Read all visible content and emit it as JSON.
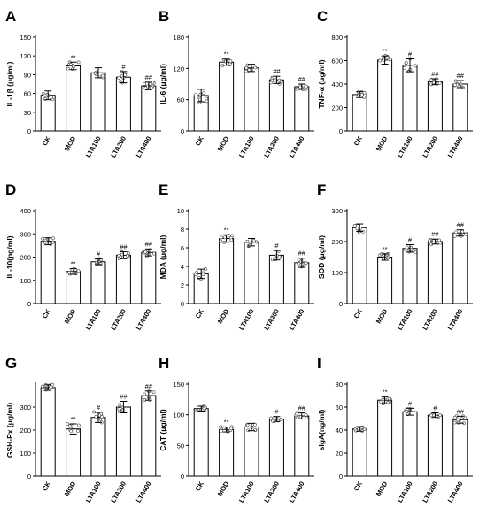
{
  "chart_data": [
    {
      "panel": "A",
      "type": "bar",
      "ylabel": "IL-1β (μg/ml)",
      "categories": [
        "CK",
        "MOD",
        "LTA100",
        "LTA200",
        "LTA400"
      ],
      "values": [
        57,
        104,
        93,
        86,
        72
      ],
      "errors": [
        7,
        6,
        8,
        9,
        6
      ],
      "annotations": [
        "",
        "**",
        "",
        "#",
        "##"
      ],
      "ylim": [
        0,
        150
      ],
      "yticks": [
        0,
        30,
        60,
        90,
        120,
        150
      ]
    },
    {
      "panel": "B",
      "type": "bar",
      "ylabel": "IL-6 (μg/ml)",
      "categories": [
        "CK",
        "MOD",
        "LTA100",
        "LTA200",
        "LTA400"
      ],
      "values": [
        68,
        132,
        121,
        98,
        85
      ],
      "errors": [
        12,
        6,
        7,
        7,
        5
      ],
      "annotations": [
        "",
        "**",
        "",
        "##",
        "##"
      ],
      "ylim": [
        0,
        180
      ],
      "yticks": [
        0,
        60,
        120,
        180
      ]
    },
    {
      "panel": "C",
      "type": "bar",
      "ylabel": "TNF-α (μg/ml)",
      "categories": [
        "CK",
        "MOD",
        "LTA100",
        "LTA200",
        "LTA400"
      ],
      "values": [
        310,
        605,
        560,
        420,
        400
      ],
      "errors": [
        25,
        35,
        55,
        25,
        30
      ],
      "annotations": [
        "",
        "**",
        "#",
        "##",
        "##"
      ],
      "ylim": [
        0,
        800
      ],
      "yticks": [
        0,
        200,
        400,
        600,
        800
      ]
    },
    {
      "panel": "D",
      "type": "bar",
      "ylabel": "IL-10(pg/ml)",
      "categories": [
        "CK",
        "MOD",
        "LTA100",
        "LTA200",
        "LTA400"
      ],
      "values": [
        268,
        138,
        180,
        208,
        220
      ],
      "errors": [
        15,
        12,
        12,
        15,
        15
      ],
      "annotations": [
        "",
        "**",
        "#",
        "##",
        "##"
      ],
      "ylim": [
        0,
        400
      ],
      "yticks": [
        0,
        100,
        200,
        300,
        400
      ]
    },
    {
      "panel": "E",
      "type": "bar",
      "ylabel": "MDA (μg/ml)",
      "categories": [
        "CK",
        "MOD",
        "LTA100",
        "LTA200",
        "LTA400"
      ],
      "values": [
        3.2,
        7.0,
        6.6,
        5.2,
        4.4
      ],
      "errors": [
        0.5,
        0.4,
        0.4,
        0.5,
        0.5
      ],
      "annotations": [
        "",
        "**",
        "",
        "#",
        "##"
      ],
      "ylim": [
        0,
        10
      ],
      "yticks": [
        0,
        2,
        4,
        6,
        8,
        10
      ]
    },
    {
      "panel": "F",
      "type": "bar",
      "ylabel": "SOD (μg/ml)",
      "categories": [
        "CK",
        "MOD",
        "LTA100",
        "LTA200",
        "LTA400"
      ],
      "values": [
        245,
        150,
        178,
        200,
        228
      ],
      "errors": [
        12,
        10,
        12,
        8,
        10
      ],
      "annotations": [
        "",
        "**",
        "#",
        "##",
        "##"
      ],
      "ylim": [
        0,
        300
      ],
      "yticks": [
        0,
        100,
        200,
        300
      ]
    },
    {
      "panel": "G",
      "type": "bar",
      "ylabel": "GSH-Px (μg/ml)",
      "categories": [
        "CK",
        "MOD",
        "LTA100",
        "LTA200",
        "LTA400"
      ],
      "values": [
        385,
        205,
        255,
        300,
        350
      ],
      "errors": [
        12,
        22,
        22,
        25,
        20
      ],
      "annotations": [
        "",
        "**",
        "#",
        "##",
        "##"
      ],
      "ylim": [
        0,
        400
      ],
      "yticks": [
        0,
        100,
        200,
        300
      ]
    },
    {
      "panel": "H",
      "type": "bar",
      "ylabel": "CAT (μg/ml)",
      "categories": [
        "CK",
        "MOD",
        "LTA100",
        "LTA200",
        "LTA400"
      ],
      "values": [
        110,
        76,
        80,
        93,
        98
      ],
      "errors": [
        4,
        4,
        6,
        4,
        5
      ],
      "annotations": [
        "",
        "**",
        "",
        "#",
        "##"
      ],
      "ylim": [
        0,
        150
      ],
      "yticks": [
        0,
        50,
        100,
        150
      ]
    },
    {
      "panel": "I",
      "type": "bar",
      "ylabel": "sIgA(ng/ml)",
      "categories": [
        "CK",
        "MOD",
        "LTA100",
        "LTA200",
        "LTA400"
      ],
      "values": [
        41,
        66,
        56,
        53,
        49
      ],
      "errors": [
        2,
        3,
        3,
        2,
        3
      ],
      "annotations": [
        "",
        "**",
        "#",
        "#",
        "##"
      ],
      "ylim": [
        0,
        80
      ],
      "yticks": [
        0,
        20,
        40,
        60,
        80
      ]
    }
  ]
}
